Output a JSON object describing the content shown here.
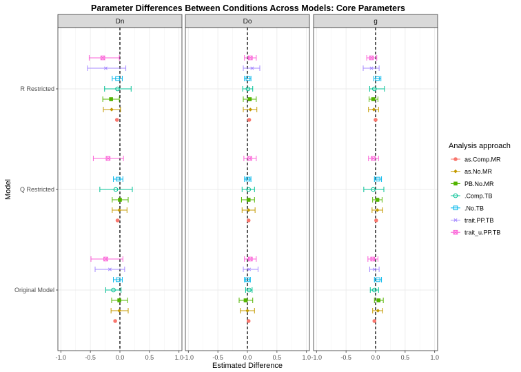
{
  "chart_data": {
    "type": "scatter",
    "title": "Parameter Differences Between Conditions Across Models: Core Parameters",
    "xlabel": "Estimated Difference",
    "ylabel": "Model",
    "xlim": [
      -1.05,
      1.05
    ],
    "x_ticks": [
      "-1.0",
      "-0.5",
      "0.0",
      "0.5",
      "1.0"
    ],
    "x_tick_values": [
      -1.0,
      -0.5,
      0.0,
      0.5,
      1.0
    ],
    "reference_line": 0,
    "grid": true,
    "legend_position": "right",
    "legend_title": "Analysis approach",
    "panels": [
      "Dn",
      "Do",
      "g"
    ],
    "models": [
      "Original Model",
      "Q Restricted",
      "R Restricted"
    ],
    "series": [
      {
        "name": "as.Comp.MR",
        "color": "#F8766D",
        "shape": "circle",
        "points": [
          {
            "panel": "Dn",
            "model": "Original Model",
            "est": -0.08,
            "lo": -0.08,
            "hi": -0.08
          },
          {
            "panel": "Dn",
            "model": "Q Restricted",
            "est": -0.04,
            "lo": -0.04,
            "hi": -0.04
          },
          {
            "panel": "Dn",
            "model": "R Restricted",
            "est": -0.05,
            "lo": -0.05,
            "hi": -0.05
          },
          {
            "panel": "Do",
            "model": "Original Model",
            "est": 0.02,
            "lo": 0.02,
            "hi": 0.02
          },
          {
            "panel": "Do",
            "model": "Q Restricted",
            "est": 0.02,
            "lo": 0.02,
            "hi": 0.02
          },
          {
            "panel": "Do",
            "model": "R Restricted",
            "est": 0.03,
            "lo": 0.03,
            "hi": 0.03
          },
          {
            "panel": "g",
            "model": "Original Model",
            "est": -0.02,
            "lo": -0.02,
            "hi": -0.02
          },
          {
            "panel": "g",
            "model": "Q Restricted",
            "est": 0.01,
            "lo": 0.01,
            "hi": 0.01
          },
          {
            "panel": "g",
            "model": "R Restricted",
            "est": 0.0,
            "lo": 0.0,
            "hi": 0.0
          }
        ]
      },
      {
        "name": "as.No.MR",
        "color": "#C49A00",
        "shape": "diamond",
        "points": [
          {
            "panel": "Dn",
            "model": "Original Model",
            "est": -0.01,
            "lo": -0.15,
            "hi": 0.14
          },
          {
            "panel": "Dn",
            "model": "Q Restricted",
            "est": -0.01,
            "lo": -0.13,
            "hi": 0.12
          },
          {
            "panel": "Dn",
            "model": "R Restricted",
            "est": -0.14,
            "lo": -0.28,
            "hi": 0.01
          },
          {
            "panel": "Do",
            "model": "Original Model",
            "est": 0.0,
            "lo": -0.12,
            "hi": 0.12
          },
          {
            "panel": "Do",
            "model": "Q Restricted",
            "est": 0.02,
            "lo": -0.09,
            "hi": 0.13
          },
          {
            "panel": "Do",
            "model": "R Restricted",
            "est": 0.05,
            "lo": -0.07,
            "hi": 0.16
          },
          {
            "panel": "g",
            "model": "Original Model",
            "est": 0.04,
            "lo": -0.05,
            "hi": 0.12
          },
          {
            "panel": "g",
            "model": "Q Restricted",
            "est": 0.03,
            "lo": -0.06,
            "hi": 0.12
          },
          {
            "panel": "g",
            "model": "R Restricted",
            "est": -0.03,
            "lo": -0.12,
            "hi": 0.05
          }
        ]
      },
      {
        "name": "PB.No.MR",
        "color": "#53B400",
        "shape": "square",
        "points": [
          {
            "panel": "Dn",
            "model": "Original Model",
            "est": -0.01,
            "lo": -0.14,
            "hi": 0.13
          },
          {
            "panel": "Dn",
            "model": "Q Restricted",
            "est": 0.0,
            "lo": -0.13,
            "hi": 0.14
          },
          {
            "panel": "Dn",
            "model": "R Restricted",
            "est": -0.15,
            "lo": -0.29,
            "hi": -0.01
          },
          {
            "panel": "Do",
            "model": "Original Model",
            "est": -0.03,
            "lo": -0.14,
            "hi": 0.09
          },
          {
            "panel": "Do",
            "model": "Q Restricted",
            "est": 0.02,
            "lo": -0.1,
            "hi": 0.12
          },
          {
            "panel": "Do",
            "model": "R Restricted",
            "est": 0.04,
            "lo": -0.07,
            "hi": 0.15
          },
          {
            "panel": "g",
            "model": "Original Model",
            "est": 0.05,
            "lo": -0.02,
            "hi": 0.13
          },
          {
            "panel": "g",
            "model": "Q Restricted",
            "est": 0.03,
            "lo": -0.05,
            "hi": 0.11
          },
          {
            "panel": "g",
            "model": "R Restricted",
            "est": -0.04,
            "lo": -0.11,
            "hi": 0.04
          }
        ]
      },
      {
        "name": ".Comp.TB",
        "color": "#00C094",
        "shape": "circle-open",
        "points": [
          {
            "panel": "Dn",
            "model": "Original Model",
            "est": -0.11,
            "lo": -0.24,
            "hi": 0.02
          },
          {
            "panel": "Dn",
            "model": "Q Restricted",
            "est": -0.07,
            "lo": -0.34,
            "hi": 0.21
          },
          {
            "panel": "Dn",
            "model": "R Restricted",
            "est": -0.04,
            "lo": -0.26,
            "hi": 0.19
          },
          {
            "panel": "Do",
            "model": "Original Model",
            "est": 0.03,
            "lo": -0.03,
            "hi": 0.08
          },
          {
            "panel": "Do",
            "model": "Q Restricted",
            "est": 0.02,
            "lo": -0.09,
            "hi": 0.12
          },
          {
            "panel": "Do",
            "model": "R Restricted",
            "est": 0.01,
            "lo": -0.08,
            "hi": 0.09
          },
          {
            "panel": "g",
            "model": "Original Model",
            "est": -0.02,
            "lo": -0.09,
            "hi": 0.05
          },
          {
            "panel": "g",
            "model": "Q Restricted",
            "est": -0.04,
            "lo": -0.2,
            "hi": 0.14
          },
          {
            "panel": "g",
            "model": "R Restricted",
            "est": -0.02,
            "lo": -0.1,
            "hi": 0.15
          }
        ]
      },
      {
        "name": ".No.TB",
        "color": "#00B6EB",
        "shape": "square-open",
        "points": [
          {
            "panel": "Dn",
            "model": "Original Model",
            "est": -0.03,
            "lo": -0.11,
            "hi": 0.04
          },
          {
            "panel": "Dn",
            "model": "Q Restricted",
            "est": -0.03,
            "lo": -0.11,
            "hi": 0.05
          },
          {
            "panel": "Dn",
            "model": "R Restricted",
            "est": -0.04,
            "lo": -0.13,
            "hi": 0.04
          },
          {
            "panel": "Do",
            "model": "Original Model",
            "est": 0.0,
            "lo": -0.05,
            "hi": 0.05
          },
          {
            "panel": "Do",
            "model": "Q Restricted",
            "est": 0.01,
            "lo": -0.05,
            "hi": 0.06
          },
          {
            "panel": "Do",
            "model": "R Restricted",
            "est": 0.01,
            "lo": -0.05,
            "hi": 0.06
          },
          {
            "panel": "g",
            "model": "Original Model",
            "est": 0.04,
            "lo": -0.02,
            "hi": 0.1
          },
          {
            "panel": "g",
            "model": "Q Restricted",
            "est": 0.04,
            "lo": -0.02,
            "hi": 0.1
          },
          {
            "panel": "g",
            "model": "R Restricted",
            "est": 0.03,
            "lo": -0.03,
            "hi": 0.09
          }
        ]
      },
      {
        "name": "trait.PP.TB",
        "color": "#A58AFF",
        "shape": "asterisk",
        "points": [
          {
            "panel": "Dn",
            "model": "Original Model",
            "est": -0.17,
            "lo": -0.42,
            "hi": 0.08
          },
          {
            "panel": "Dn",
            "model": "Q Restricted",
            "est": null,
            "lo": null,
            "hi": null
          },
          {
            "panel": "Dn",
            "model": "R Restricted",
            "est": -0.24,
            "lo": -0.55,
            "hi": 0.1
          },
          {
            "panel": "Do",
            "model": "Original Model",
            "est": 0.03,
            "lo": -0.07,
            "hi": 0.18
          },
          {
            "panel": "Do",
            "model": "Q Restricted",
            "est": null,
            "lo": null,
            "hi": null
          },
          {
            "panel": "Do",
            "model": "R Restricted",
            "est": 0.08,
            "lo": -0.07,
            "hi": 0.21
          },
          {
            "panel": "g",
            "model": "Original Model",
            "est": -0.02,
            "lo": -0.1,
            "hi": 0.06
          },
          {
            "panel": "g",
            "model": "Q Restricted",
            "est": null,
            "lo": null,
            "hi": null
          },
          {
            "panel": "g",
            "model": "R Restricted",
            "est": -0.07,
            "lo": -0.21,
            "hi": 0.06
          }
        ]
      },
      {
        "name": "trait_u.PP.TB",
        "color": "#FB61D7",
        "shape": "square-cross",
        "points": [
          {
            "panel": "Dn",
            "model": "Original Model",
            "est": -0.24,
            "lo": -0.49,
            "hi": 0.05
          },
          {
            "panel": "Dn",
            "model": "Q Restricted",
            "est": -0.2,
            "lo": -0.45,
            "hi": 0.06
          },
          {
            "panel": "Dn",
            "model": "R Restricted",
            "est": -0.29,
            "lo": -0.52,
            "hi": -0.01
          },
          {
            "panel": "Do",
            "model": "Original Model",
            "est": 0.05,
            "lo": -0.05,
            "hi": 0.15
          },
          {
            "panel": "Do",
            "model": "Q Restricted",
            "est": 0.04,
            "lo": -0.06,
            "hi": 0.15
          },
          {
            "panel": "Do",
            "model": "R Restricted",
            "est": 0.05,
            "lo": -0.05,
            "hi": 0.15
          },
          {
            "panel": "g",
            "model": "Original Model",
            "est": -0.05,
            "lo": -0.13,
            "hi": 0.04
          },
          {
            "panel": "g",
            "model": "Q Restricted",
            "est": -0.04,
            "lo": -0.12,
            "hi": 0.05
          },
          {
            "panel": "g",
            "model": "R Restricted",
            "est": -0.07,
            "lo": -0.15,
            "hi": 0.02
          }
        ]
      }
    ]
  }
}
